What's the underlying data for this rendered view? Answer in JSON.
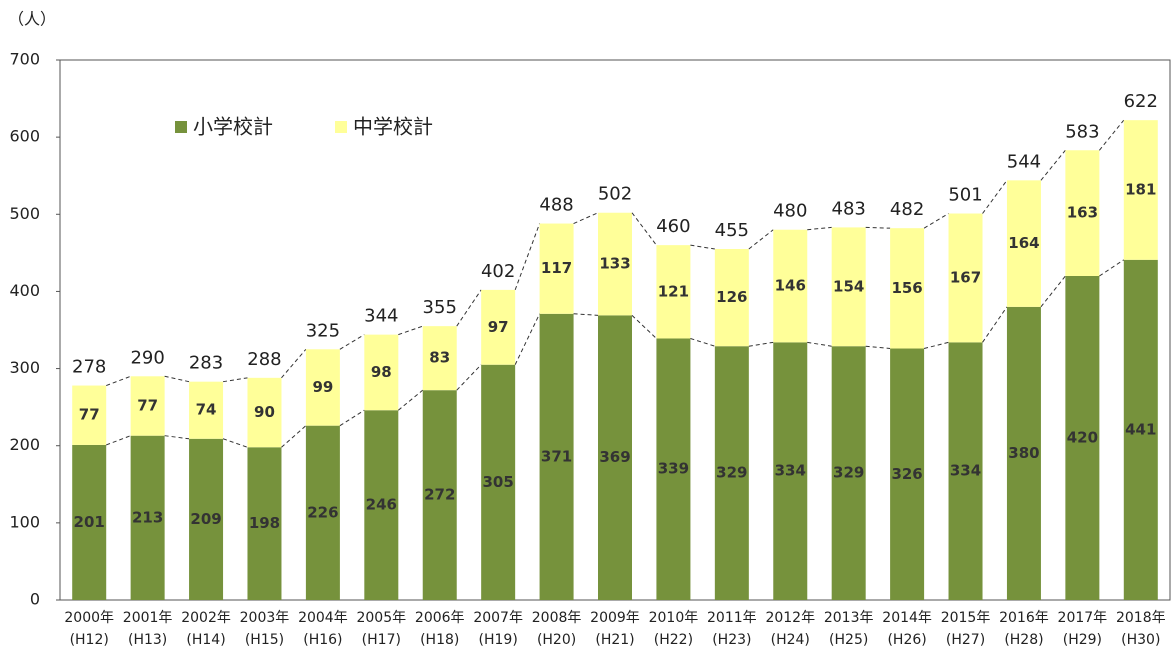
{
  "chart_data": {
    "type": "stacked_bar",
    "unit_label": "（人）",
    "categories": [
      [
        "2000年",
        "(H12)"
      ],
      [
        "2001年",
        "(H13)"
      ],
      [
        "2002年",
        "(H14)"
      ],
      [
        "2003年",
        "(H15)"
      ],
      [
        "2004年",
        "(H16)"
      ],
      [
        "2005年",
        "(H17)"
      ],
      [
        "2006年",
        "(H18)"
      ],
      [
        "2007年",
        "(H19)"
      ],
      [
        "2008年",
        "(H20)"
      ],
      [
        "2009年",
        "(H21)"
      ],
      [
        "2010年",
        "(H22)"
      ],
      [
        "2011年",
        "(H23)"
      ],
      [
        "2012年",
        "(H24)"
      ],
      [
        "2013年",
        "(H25)"
      ],
      [
        "2014年",
        "(H26)"
      ],
      [
        "2015年",
        "(H27)"
      ],
      [
        "2016年",
        "(H28)"
      ],
      [
        "2017年",
        "(H29)"
      ],
      [
        "2018年",
        "(H30)"
      ]
    ],
    "series": [
      {
        "name": "小学校計",
        "color": "#76923c",
        "values": [
          201,
          213,
          209,
          198,
          226,
          246,
          272,
          305,
          371,
          369,
          339,
          329,
          334,
          329,
          326,
          334,
          380,
          420,
          441
        ]
      },
      {
        "name": "中学校計",
        "color": "#ffff99",
        "values": [
          77,
          77,
          74,
          90,
          99,
          98,
          83,
          97,
          117,
          133,
          121,
          126,
          146,
          154,
          156,
          167,
          164,
          163,
          181
        ]
      }
    ],
    "totals": [
      278,
      290,
      283,
      288,
      325,
      344,
      355,
      402,
      488,
      502,
      460,
      455,
      480,
      483,
      482,
      501,
      544,
      583,
      622
    ],
    "ylim": [
      0,
      700
    ],
    "yticks": [
      0,
      100,
      200,
      300,
      400,
      500,
      600,
      700
    ],
    "legend": "top-left"
  }
}
